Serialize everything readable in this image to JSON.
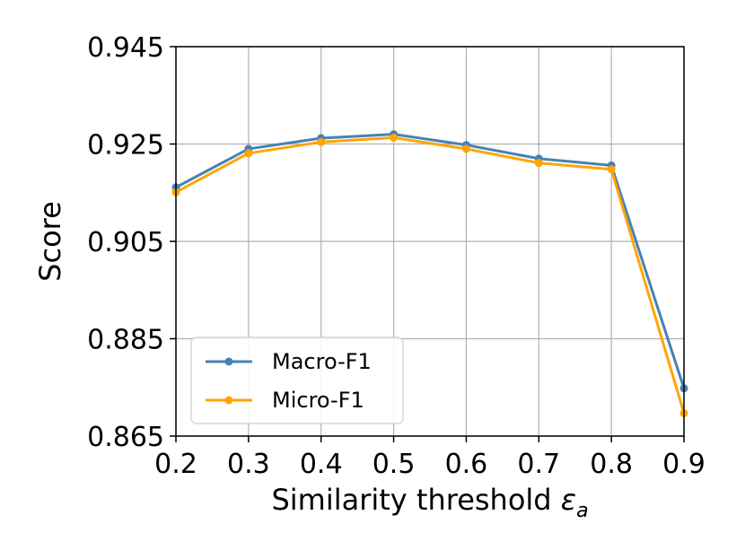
{
  "chart_data": {
    "type": "line",
    "title": "",
    "xlabel": "Similarity threshold",
    "xlabel_symbol": "ε",
    "xlabel_subscript": "a",
    "ylabel": "Score",
    "xlim": [
      0.2,
      0.9
    ],
    "ylim": [
      0.865,
      0.945
    ],
    "xticks": [
      "0.2",
      "0.3",
      "0.4",
      "0.5",
      "0.6",
      "0.7",
      "0.8",
      "0.9"
    ],
    "yticks": [
      "0.865",
      "0.885",
      "0.905",
      "0.925",
      "0.945"
    ],
    "grid": true,
    "legend_position": "lower-left",
    "x": [
      0.2,
      0.3,
      0.4,
      0.5,
      0.6,
      0.7,
      0.8,
      0.9
    ],
    "series": [
      {
        "name": "Macro-F1",
        "color": "#4682b4",
        "values": [
          0.9161,
          0.924,
          0.9262,
          0.927,
          0.9248,
          0.922,
          0.9206,
          0.8748
        ]
      },
      {
        "name": "Micro-F1",
        "color": "#ffa500",
        "values": [
          0.9151,
          0.9231,
          0.9254,
          0.9263,
          0.924,
          0.9211,
          0.9198,
          0.8697
        ]
      }
    ]
  }
}
